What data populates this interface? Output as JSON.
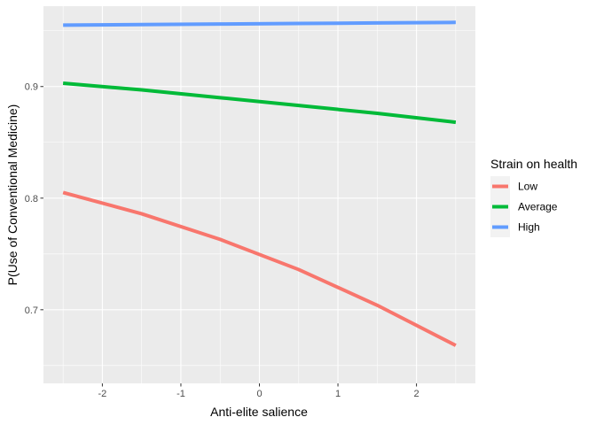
{
  "chart_data": {
    "type": "line",
    "xlabel": "Anti-elite salience",
    "ylabel": "P(Use of Conventional Medicine)",
    "xlim": [
      -2.75,
      2.75
    ],
    "ylim": [
      0.634,
      0.972
    ],
    "x_ticks": [
      -2,
      -1,
      0,
      1,
      2
    ],
    "x_tick_labels": [
      "-2",
      "-1",
      "0",
      "1",
      "2"
    ],
    "y_ticks": [
      0.7,
      0.8,
      0.9
    ],
    "y_tick_labels": [
      "0.7",
      "0.8",
      "0.9"
    ],
    "grid": true,
    "legend": {
      "title": "Strain on health",
      "position": "right"
    },
    "series": [
      {
        "name": "Low",
        "color": "#F8766D",
        "x": [
          -2.5,
          -1.5,
          -0.5,
          0.5,
          1.5,
          2.5
        ],
        "y": [
          0.805,
          0.786,
          0.763,
          0.736,
          0.704,
          0.668
        ]
      },
      {
        "name": "Average",
        "color": "#00BA38",
        "x": [
          -2.5,
          -1.5,
          -0.5,
          0.5,
          1.5,
          2.5
        ],
        "y": [
          0.903,
          0.897,
          0.89,
          0.883,
          0.876,
          0.868
        ]
      },
      {
        "name": "High",
        "color": "#619CFF",
        "x": [
          -2.5,
          -1.5,
          -0.5,
          0.5,
          1.5,
          2.5
        ],
        "y": [
          0.955,
          0.9555,
          0.956,
          0.9565,
          0.957,
          0.9575
        ]
      }
    ]
  }
}
